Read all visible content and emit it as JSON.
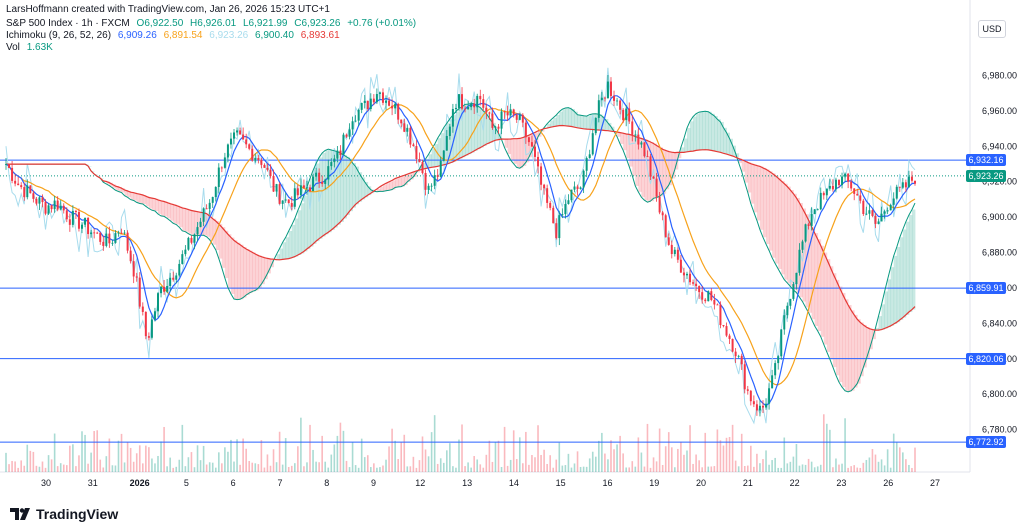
{
  "header": {
    "created": "LarsHoffmann created with TradingView.com, Jan 26, 2026 15:23 UTC+1"
  },
  "legend": {
    "symbol": "S&P 500 Index · 1h · FXCM",
    "ohlc": {
      "o": "O6,922.50",
      "h": "H6,926.01",
      "l": "L6,921.99",
      "c": "C6,923.26",
      "chg": "+0.76 (+0.01%)"
    },
    "ichimoku_label": "Ichimoku (9, 26, 52, 26)",
    "ichimoku_values": [
      {
        "text": "6,909.26",
        "color": "#2962ff"
      },
      {
        "text": "6,891.54",
        "color": "#f7a21b"
      },
      {
        "text": "6,923.26",
        "color": "#a8dced"
      },
      {
        "text": "6,900.40",
        "color": "#089981"
      },
      {
        "text": "6,893.61",
        "color": "#e53935"
      }
    ],
    "vol_label": "Vol",
    "vol_value": "1.63K"
  },
  "currency": "USD",
  "brand": "TradingView",
  "colors": {
    "up": "#089981",
    "down": "#f23645",
    "conversion": "#2962ff",
    "base": "#f7a21b",
    "lagging": "#a8dced",
    "span_a": "#089981",
    "span_b": "#e53935",
    "hline": "#2962ff",
    "last": "#089981"
  },
  "chart_data": {
    "type": "candlestick",
    "title": "S&P 500 Index · 1h · FXCM",
    "timeframe": "1h",
    "ylim": [
      6760,
      7000
    ],
    "y_ticks": [
      "6,980.00",
      "6,960.00",
      "6,940.00",
      "6,920.00",
      "6,900.00",
      "6,880.00",
      "6,860.00",
      "6,840.00",
      "6,820.00",
      "6,800.00",
      "6,780.00"
    ],
    "y_tick_values": [
      6980,
      6960,
      6940,
      6920,
      6900,
      6880,
      6860,
      6840,
      6820,
      6800,
      6780
    ],
    "x_ticks": [
      "30",
      "31",
      "2026",
      "5",
      "6",
      "7",
      "8",
      "9",
      "12",
      "13",
      "14",
      "15",
      "16",
      "19",
      "20",
      "21",
      "22",
      "23",
      "26",
      "27"
    ],
    "horizontal_lines": [
      {
        "label": "6,932.16",
        "value": 6932.16
      },
      {
        "label": "6,859.91",
        "value": 6859.91
      },
      {
        "label": "6,820.06",
        "value": 6820.06
      },
      {
        "label": "6,772.92",
        "value": 6772.92
      }
    ],
    "last_price": {
      "label": "6,923.26",
      "value": 6923.26
    },
    "close_path": [
      6930,
      6918,
      6912,
      6906,
      6908,
      6900,
      6896,
      6890,
      6885,
      6895,
      6870,
      6830,
      6858,
      6868,
      6880,
      6895,
      6910,
      6935,
      6945,
      6938,
      6932,
      6915,
      6908,
      6914,
      6920,
      6925,
      6935,
      6958,
      6962,
      6972,
      6965,
      6955,
      6938,
      6915,
      6928,
      6966,
      6965,
      6968,
      6950,
      6958,
      6955,
      6940,
      6912,
      6892,
      6912,
      6918,
      6955,
      6975,
      6962,
      6950,
      6935,
      6905,
      6880,
      6870,
      6860,
      6855,
      6840,
      6825,
      6800,
      6790,
      6810,
      6850,
      6880,
      6905,
      6912,
      6922,
      6918,
      6905,
      6895,
      6910,
      6915,
      6923
    ],
    "volume_note": "Vol 1.63K"
  }
}
